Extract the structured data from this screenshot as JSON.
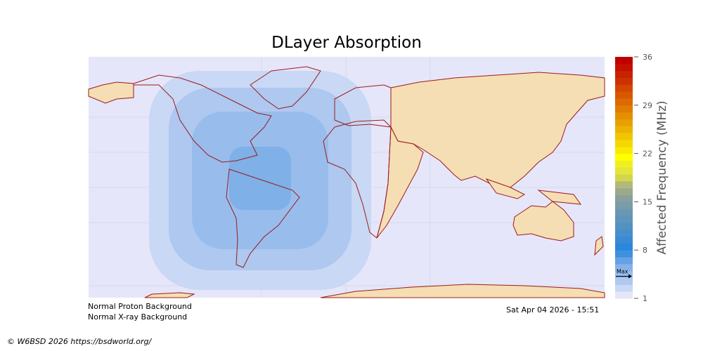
{
  "title": "DLayer Absorption",
  "status": {
    "proton": "Normal Proton Background",
    "xray": "Normal X-ray Background",
    "timestamp": "Sat Apr 04 2026 - 15:51"
  },
  "copyright": "© W6BSD 2026 https://bsdworld.org/",
  "colorbar": {
    "label": "Affected Frequency (MHz)",
    "range": [
      1,
      36
    ],
    "ticks": [
      "36",
      "29",
      "22",
      "15",
      "8",
      "1"
    ],
    "max_marker_label": "Max",
    "max_marker_value": 4.2,
    "colors": [
      "#e6e6fa",
      "#c9d8f4",
      "#aec8f0",
      "#98bdec",
      "#86b2e9",
      "#64a2e6",
      "#3f90e0",
      "#2a88dc",
      "#3a8bd4",
      "#478ecc",
      "#5391c3",
      "#5f95bb",
      "#6a98b2",
      "#7a9ca8",
      "#8a9f9e",
      "#9caa8c",
      "#b2b97a",
      "#d2d64c",
      "#e4e43a",
      "#f0f020",
      "#ffff00",
      "#f8ea00",
      "#f4d800",
      "#f0c600",
      "#ecb200",
      "#e8a000",
      "#e48e00",
      "#e07c00",
      "#dc6a00",
      "#d85800",
      "#d44600",
      "#cc3200",
      "#c82200",
      "#c41000",
      "#c00000"
    ]
  },
  "map": {
    "ocean_color": "#e6e6fa",
    "land_color": "#f5deb3",
    "coast_color": "#9b1b1b",
    "absorption_levels": [
      {
        "mhz": 2,
        "color": "#c9d8f4"
      },
      {
        "mhz": 3,
        "color": "#aec8f0"
      },
      {
        "mhz": 4,
        "color": "#98bdec"
      },
      {
        "mhz": 5,
        "color": "#7fb0e8"
      }
    ]
  }
}
